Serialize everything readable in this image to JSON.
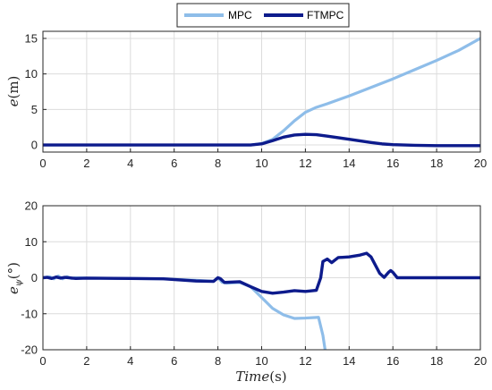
{
  "legend": {
    "entries": [
      {
        "name": "MPC",
        "color": "#8ebde9"
      },
      {
        "name": "FTMPC",
        "color": "#0d1b8c"
      }
    ]
  },
  "chart_data": [
    {
      "type": "line",
      "xlabel": "",
      "ylabel": "e(m)",
      "xlim": [
        0,
        20
      ],
      "ylim": [
        -1,
        16
      ],
      "xticks": [
        "0",
        "2",
        "4",
        "6",
        "8",
        "10",
        "12",
        "14",
        "16",
        "18",
        "20"
      ],
      "yticks": [
        "0",
        "5",
        "10",
        "15"
      ],
      "ytick_values": [
        0,
        5,
        10,
        15
      ],
      "grid": true,
      "series": [
        {
          "name": "MPC",
          "color": "#8ebde9",
          "x": [
            0,
            9.5,
            10,
            10.5,
            11,
            11.5,
            12,
            12.5,
            13,
            14,
            15,
            16,
            17,
            18,
            19,
            20
          ],
          "y": [
            0,
            0,
            0.2,
            0.8,
            2.0,
            3.4,
            4.6,
            5.3,
            5.8,
            6.9,
            8.1,
            9.3,
            10.6,
            11.9,
            13.3,
            15.0
          ]
        },
        {
          "name": "FTMPC",
          "color": "#0d1b8c",
          "x": [
            0,
            9.5,
            10,
            10.5,
            11,
            11.5,
            12,
            12.5,
            13,
            14,
            15,
            15.5,
            16,
            17,
            18,
            19,
            20
          ],
          "y": [
            0,
            0,
            0.15,
            0.6,
            1.1,
            1.4,
            1.5,
            1.45,
            1.25,
            0.8,
            0.35,
            0.15,
            0.05,
            -0.05,
            -0.1,
            -0.1,
            -0.1
          ]
        }
      ]
    },
    {
      "type": "line",
      "xlabel": "Time(s)",
      "ylabel": "e_ψ(°)",
      "xlim": [
        0,
        20
      ],
      "ylim": [
        -20,
        20
      ],
      "xticks": [
        "0",
        "2",
        "4",
        "6",
        "8",
        "10",
        "12",
        "14",
        "16",
        "18",
        "20"
      ],
      "yticks": [
        "-20",
        "-10",
        "0",
        "10",
        "20"
      ],
      "ytick_values": [
        -20,
        -10,
        0,
        10,
        20
      ],
      "grid": true,
      "series": [
        {
          "name": "MPC",
          "color": "#8ebde9",
          "x": [
            0,
            0.3,
            0.5,
            0.7,
            0.9,
            1.1,
            1.3,
            1.5,
            2,
            5.5,
            7,
            7.8,
            8.0,
            8.2,
            8.4,
            9.0,
            9.5,
            10,
            10.5,
            11,
            11.5,
            12,
            12.6,
            12.8,
            12.9
          ],
          "y": [
            0,
            0.3,
            -0.3,
            0.5,
            -0.3,
            0.3,
            -0.2,
            0,
            -0.1,
            -0.3,
            -0.7,
            -1.0,
            0,
            -1.3,
            -1.5,
            -1.3,
            -2.5,
            -5.5,
            -8.5,
            -10.3,
            -11.3,
            -11.2,
            -11.0,
            -16,
            -20
          ]
        },
        {
          "name": "FTMPC",
          "color": "#0d1b8c",
          "x": [
            0,
            0.2,
            0.4,
            0.6,
            0.8,
            1.0,
            1.5,
            2,
            4,
            5.5,
            7,
            7.8,
            8.0,
            8.1,
            8.3,
            9.0,
            9.5,
            10,
            10.5,
            11,
            11.5,
            12,
            12.5,
            12.7,
            12.8,
            13,
            13.2,
            13.5,
            14,
            14.5,
            14.8,
            15,
            15.2,
            15.4,
            15.6,
            15.8,
            15.9,
            16,
            16.2,
            17,
            18,
            20
          ],
          "y": [
            0,
            0.1,
            -0.2,
            0.2,
            -0.1,
            0.1,
            -0.2,
            -0.1,
            -0.2,
            -0.3,
            -0.9,
            -1.0,
            0,
            -0.2,
            -1.3,
            -1.1,
            -2.5,
            -3.8,
            -4.3,
            -4.0,
            -3.6,
            -3.8,
            -3.5,
            0,
            4.5,
            5.2,
            4.2,
            5.6,
            5.8,
            6.3,
            6.8,
            5.8,
            3.5,
            1.2,
            0.1,
            1.5,
            2.0,
            1.5,
            0,
            0,
            0,
            0
          ]
        }
      ]
    }
  ]
}
